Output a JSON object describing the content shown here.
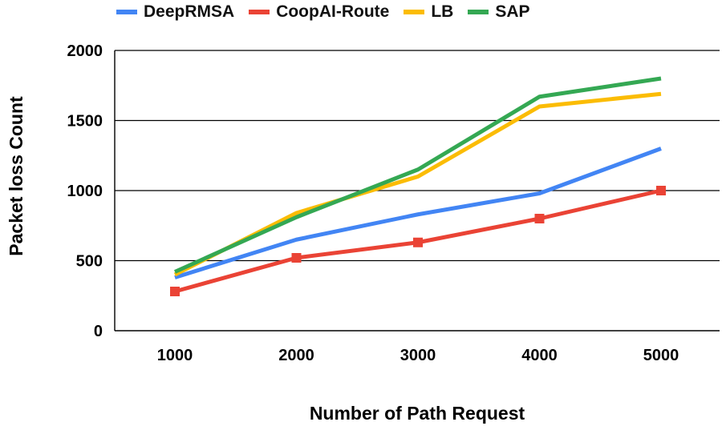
{
  "chart_data": {
    "type": "line",
    "title": "",
    "xlabel": "Number of Path Request",
    "ylabel": "Packet loss Count",
    "categories": [
      "1000",
      "2000",
      "3000",
      "4000",
      "5000"
    ],
    "ylim": [
      0,
      2000
    ],
    "yticks": [
      0,
      500,
      1000,
      1500,
      2000
    ],
    "grid": true,
    "legend_position": "top",
    "series": [
      {
        "name": "DeepRMSA",
        "color": "#4285f4",
        "marker": "none",
        "values": [
          380,
          650,
          830,
          980,
          1300
        ]
      },
      {
        "name": "CoopAI-Route",
        "color": "#ea4335",
        "marker": "square",
        "values": [
          280,
          520,
          630,
          800,
          1000
        ]
      },
      {
        "name": "LB",
        "color": "#fbbc04",
        "marker": "none",
        "values": [
          400,
          840,
          1100,
          1600,
          1690
        ]
      },
      {
        "name": "SAP",
        "color": "#34a853",
        "marker": "none",
        "values": [
          420,
          810,
          1150,
          1670,
          1800
        ]
      }
    ]
  }
}
